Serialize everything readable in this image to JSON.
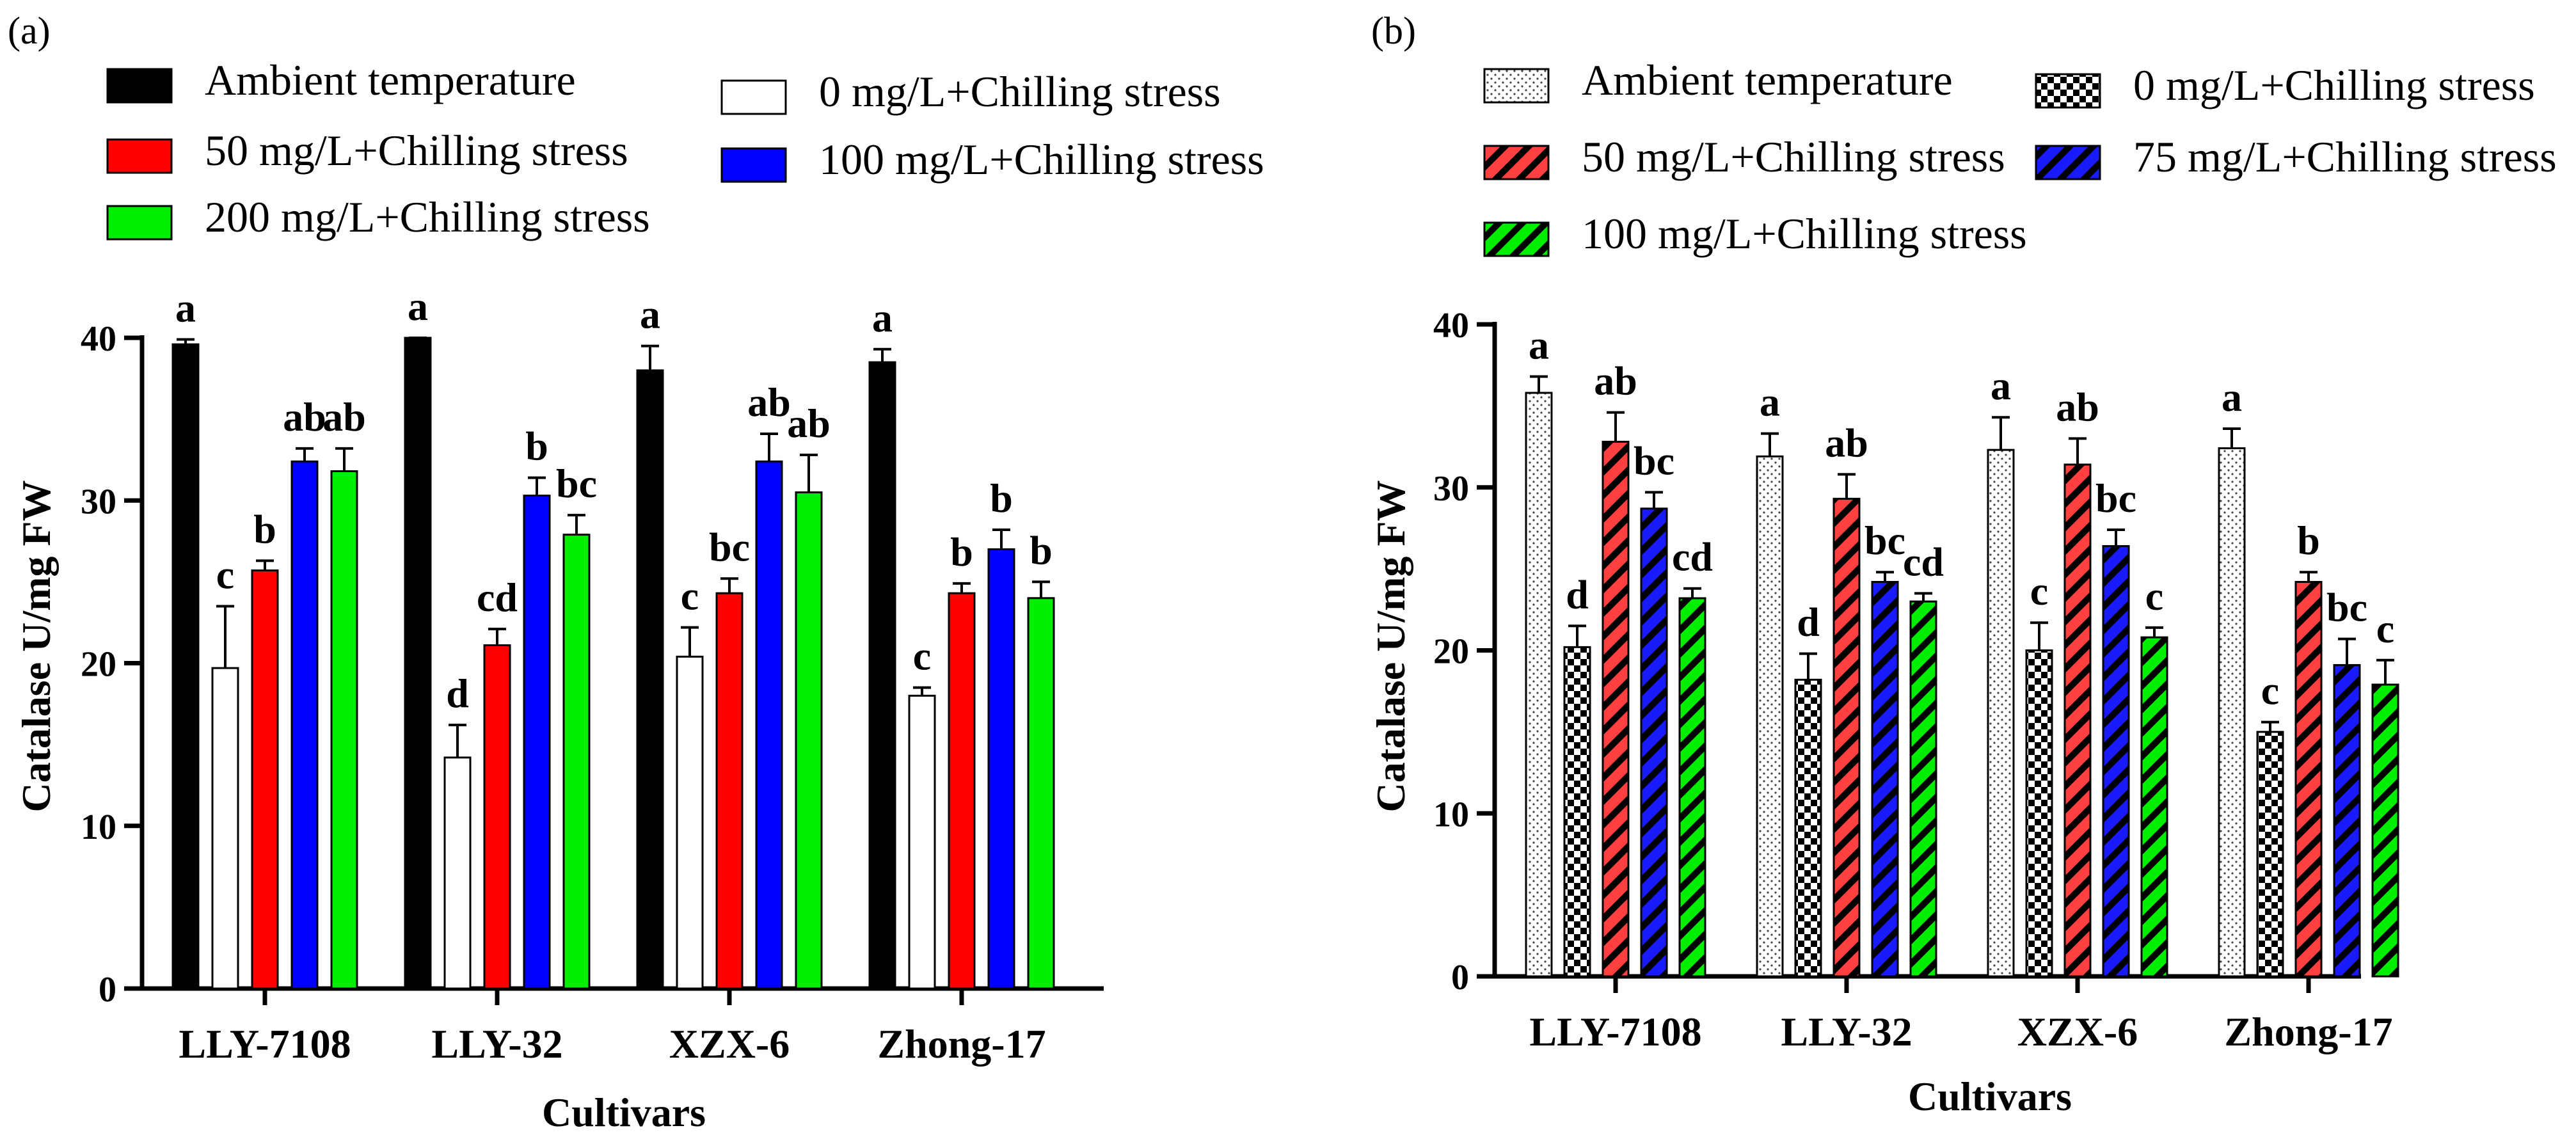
{
  "chart_data": [
    {
      "panel": "(a)",
      "type": "bar",
      "title": "",
      "xlabel": "Cultivars",
      "ylabel": "Catalase U/mg FW",
      "ylim": [
        0,
        40
      ],
      "yticks": [
        0,
        10,
        20,
        30,
        40
      ],
      "categories": [
        "LLY-7108",
        "LLY-32",
        "XZX-6",
        "Zhong-17"
      ],
      "series": [
        {
          "name": "Ambient temperature",
          "color": "#000000",
          "pattern": "solid",
          "values": [
            39.6,
            40.0,
            38.0,
            38.5
          ],
          "errors": [
            0.3,
            0.0,
            1.5,
            0.8
          ],
          "letters": [
            "a",
            "a",
            "a",
            "a"
          ]
        },
        {
          "name": "0 mg/L+Chilling stress",
          "color": "#ffffff",
          "pattern": "solid",
          "values": [
            19.7,
            14.2,
            20.4,
            18.0
          ],
          "errors": [
            3.8,
            2.0,
            1.8,
            0.5
          ],
          "letters": [
            "c",
            "d",
            "c",
            "c"
          ]
        },
        {
          "name": "50 mg/L+Chilling stress",
          "color": "#ff0000",
          "pattern": "solid",
          "values": [
            25.7,
            21.1,
            24.3,
            24.3
          ],
          "errors": [
            0.6,
            1.0,
            0.9,
            0.6
          ],
          "letters": [
            "b",
            "cd",
            "bc",
            "b"
          ]
        },
        {
          "name": "100 mg/L+Chilling stress",
          "color": "#0000ff",
          "pattern": "solid",
          "values": [
            32.4,
            30.3,
            32.4,
            27.0
          ],
          "errors": [
            0.8,
            1.1,
            1.7,
            1.2
          ],
          "letters": [
            "ab",
            "b",
            "ab",
            "b"
          ]
        },
        {
          "name": "200 mg/L+Chilling stress",
          "color": "#00ee00",
          "pattern": "solid",
          "values": [
            31.8,
            27.9,
            30.5,
            24.0
          ],
          "errors": [
            1.4,
            1.2,
            2.3,
            1.0
          ],
          "letters": [
            "ab",
            "bc",
            "ab",
            "b"
          ]
        }
      ]
    },
    {
      "panel": "(b)",
      "type": "bar",
      "title": "",
      "xlabel": "Cultivars",
      "ylabel": "Catalase U/mg FW",
      "ylim": [
        0,
        40
      ],
      "yticks": [
        0,
        10,
        20,
        30,
        40
      ],
      "categories": [
        "LLY-7108",
        "LLY-32",
        "XZX-6",
        "Zhong-17"
      ],
      "series": [
        {
          "name": "Ambient temperature",
          "color": "#ffffff",
          "pattern": "dots",
          "values": [
            35.8,
            31.9,
            32.3,
            32.4
          ],
          "errors": [
            1.0,
            1.4,
            2.0,
            1.2
          ],
          "letters": [
            "a",
            "a",
            "a",
            "a"
          ]
        },
        {
          "name": "0 mg/L+Chilling stress",
          "color": "#000000",
          "pattern": "checker",
          "values": [
            20.2,
            18.2,
            20.0,
            15.0
          ],
          "errors": [
            1.3,
            1.6,
            1.7,
            0.6
          ],
          "letters": [
            "d",
            "d",
            "c",
            "c"
          ]
        },
        {
          "name": "50 mg/L+Chilling stress",
          "color": "#ff4040",
          "pattern": "stripes",
          "values": [
            32.8,
            29.3,
            31.4,
            24.2
          ],
          "errors": [
            1.8,
            1.5,
            1.6,
            0.6
          ],
          "letters": [
            "ab",
            "ab",
            "ab",
            "b"
          ]
        },
        {
          "name": "75 mg/L+Chilling stress",
          "color": "#1a1aff",
          "pattern": "stripes",
          "values": [
            28.7,
            24.2,
            26.4,
            19.1
          ],
          "errors": [
            1.0,
            0.6,
            1.0,
            1.6
          ],
          "letters": [
            "bc",
            "bc",
            "bc",
            "bc"
          ]
        },
        {
          "name": "100 mg/L+Chilling stress",
          "color": "#00ee00",
          "pattern": "stripes",
          "values": [
            23.2,
            23.0,
            20.8,
            17.9
          ],
          "errors": [
            0.6,
            0.5,
            0.6,
            1.5
          ],
          "letters": [
            "cd",
            "cd",
            "c",
            "c"
          ]
        }
      ]
    }
  ]
}
